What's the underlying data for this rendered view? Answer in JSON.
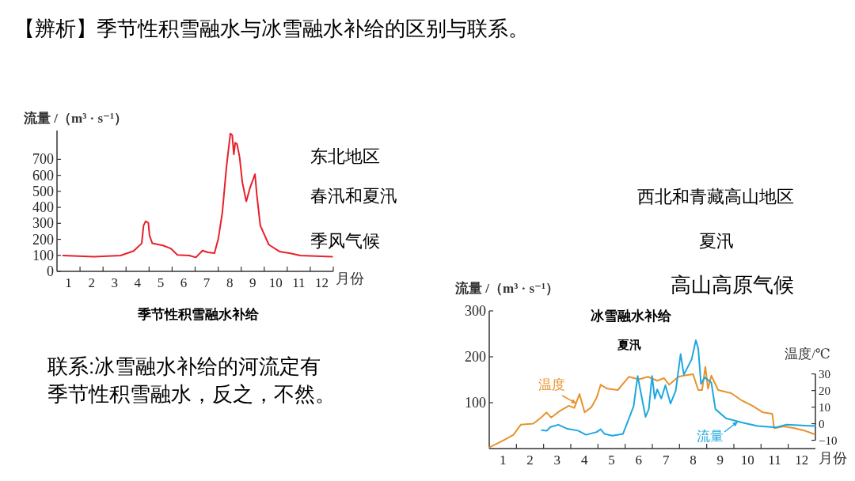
{
  "chart_data": [
    {
      "type": "line",
      "title": "【辨析】季节性积雪融水与冰雪融水补给的区别与联系。",
      "ylabel": "流量 /（m³ · s⁻¹）",
      "xlabel": "月份",
      "annotations": [
        "季节性积雪融水补给",
        "东北地区",
        "春汛和夏汛",
        "季风气候",
        "联系:冰雪融水补给的河流定有季节性积雪融水，反之，不然。"
      ],
      "xlim": [
        0,
        12
      ],
      "ylim": [
        0,
        880
      ],
      "xticks": [
        {
          "value": 0.5,
          "label": "1"
        },
        {
          "value": 1.5,
          "label": "2"
        },
        {
          "value": 2.5,
          "label": "3"
        },
        {
          "value": 3.5,
          "label": "4"
        },
        {
          "value": 4.5,
          "label": "5"
        },
        {
          "value": 5.5,
          "label": "6"
        },
        {
          "value": 6.5,
          "label": "7"
        },
        {
          "value": 7.5,
          "label": "8"
        },
        {
          "value": 8.5,
          "label": "9"
        },
        {
          "value": 9.5,
          "label": "10"
        },
        {
          "value": 10.5,
          "label": "11"
        },
        {
          "value": 11.5,
          "label": "12"
        },
        {
          "value": 1,
          "label": null
        },
        {
          "value": 2,
          "label": null
        },
        {
          "value": 3,
          "label": null
        },
        {
          "value": 4,
          "label": null
        },
        {
          "value": 5,
          "label": null
        },
        {
          "value": 6,
          "label": null
        },
        {
          "value": 7,
          "label": null
        },
        {
          "value": 8,
          "label": null
        },
        {
          "value": 9,
          "label": null
        },
        {
          "value": 10,
          "label": null
        },
        {
          "value": 11,
          "label": null
        },
        {
          "value": 12,
          "label": null
        }
      ],
      "yticks": [
        0,
        100,
        200,
        300,
        400,
        500,
        600,
        700
      ],
      "series": [
        {
          "color": "#e8202a",
          "x": [
            0.26,
            1.61,
            2.76,
            3.33,
            3.68,
            3.76,
            3.85,
            3.97,
            4.02,
            4.14,
            4.6,
            4.94,
            5.23,
            5.75,
            6.03,
            6.32,
            6.55,
            6.84,
            7.01,
            7.18,
            7.36,
            7.45,
            7.53,
            7.61,
            7.68,
            7.74,
            7.82,
            7.93,
            8.05,
            8.22,
            8.39,
            8.6,
            8.68,
            8.83,
            9.2,
            9.66,
            10.1,
            10.57,
            11.95
          ],
          "values": [
            99,
            92,
            99,
            127,
            175,
            286,
            313,
            302,
            223,
            175,
            162,
            143,
            103,
            99,
            87,
            130,
            119,
            114,
            207,
            366,
            652,
            763,
            862,
            851,
            731,
            803,
            795,
            715,
            556,
            437,
            525,
            607,
            477,
            286,
            167,
            124,
            114,
            99,
            91
          ]
        }
      ]
    },
    {
      "type": "line",
      "title": "冰雪融水补给",
      "ylabel": "流量 /（m³ · s⁻¹）",
      "y2label": "温度/℃",
      "xlabel": "月份",
      "annotations": [
        "夏汛",
        "西北和青藏高山地区",
        "夏汛",
        "高山高原气候"
      ],
      "xlim": [
        0,
        12
      ],
      "ylim": [
        0,
        300
      ],
      "y2lim": [
        -15,
        68
      ],
      "xticks": [
        {
          "value": 0.5,
          "label": "1"
        },
        {
          "value": 1.5,
          "label": "2"
        },
        {
          "value": 2.5,
          "label": "3"
        },
        {
          "value": 3.5,
          "label": "4"
        },
        {
          "value": 4.5,
          "label": "5"
        },
        {
          "value": 5.5,
          "label": "6"
        },
        {
          "value": 6.5,
          "label": "7"
        },
        {
          "value": 7.5,
          "label": "8"
        },
        {
          "value": 8.5,
          "label": "9"
        },
        {
          "value": 9.5,
          "label": "10"
        },
        {
          "value": 10.5,
          "label": "11"
        },
        {
          "value": 11.5,
          "label": "12"
        },
        {
          "value": 1,
          "label": null
        },
        {
          "value": 2,
          "label": null
        },
        {
          "value": 3,
          "label": null
        },
        {
          "value": 4,
          "label": null
        },
        {
          "value": 5,
          "label": null
        },
        {
          "value": 6,
          "label": null
        },
        {
          "value": 7,
          "label": null
        },
        {
          "value": 8,
          "label": null
        },
        {
          "value": 9,
          "label": null
        },
        {
          "value": 10,
          "label": null
        },
        {
          "value": 11,
          "label": null
        }
      ],
      "yticks": [
        100,
        200,
        300
      ],
      "y2ticks": [
        {
          "value": -10,
          "label": "−10"
        },
        0,
        10,
        20,
        30
      ],
      "series": [
        {
          "name": "温度",
          "color": "#e8922e",
          "axis": "y2",
          "x": [
            0,
            0.55,
            0.89,
            1.16,
            1.62,
            1.91,
            2.11,
            2.28,
            2.59,
            2.93,
            3.13,
            3.32,
            3.51,
            3.76,
            3.95,
            4.1,
            4.34,
            4.73,
            5.14,
            5.5,
            5.84,
            6.18,
            6.43,
            6.62,
            6.96,
            7.16,
            7.5,
            7.69,
            7.83,
            7.95,
            8.05,
            8.17,
            8.42,
            8.9,
            9.29,
            9.68,
            10.07,
            10.41,
            10.48,
            10.84,
            11.23,
            11.62,
            11.96
          ],
          "values": [
            -14.3,
            -9.8,
            -6.7,
            -0.6,
            0,
            3.7,
            6.8,
            3.7,
            7.6,
            10.8,
            9.5,
            17.9,
            6.8,
            10,
            15.6,
            23.5,
            21.1,
            20.3,
            28.3,
            26.7,
            28.3,
            25.9,
            27.5,
            23.5,
            28.3,
            29,
            29.8,
            20.3,
            20.3,
            34.3,
            21.1,
            29,
            20.3,
            18.4,
            14,
            10.8,
            6.8,
            6,
            -2.7,
            -1.6,
            -2.7,
            -4.3,
            -6.3
          ]
        },
        {
          "name": "流量",
          "color": "#1ea7e0",
          "x": [
            1.93,
            2.12,
            2.25,
            2.54,
            2.88,
            3.27,
            3.56,
            3.95,
            4.1,
            4.24,
            4.53,
            4.92,
            5.02,
            5.31,
            5.46,
            5.6,
            5.75,
            5.87,
            5.99,
            6.09,
            6.18,
            6.33,
            6.48,
            6.67,
            6.86,
            7.04,
            7.16,
            7.45,
            7.6,
            7.69,
            7.79,
            7.93,
            8.17,
            8.32,
            8.71,
            9.29,
            9.87,
            10.55,
            10.94,
            12
          ],
          "values": [
            40,
            39,
            47,
            52,
            43,
            39,
            30,
            36,
            42,
            32,
            28,
            32,
            47,
            92,
            158,
            115,
            69,
            86,
            158,
            109,
            129,
            109,
            138,
            98,
            126,
            206,
            161,
            195,
            236,
            218,
            141,
            155,
            144,
            86,
            66,
            57,
            49,
            46,
            52,
            49
          ]
        }
      ]
    }
  ]
}
